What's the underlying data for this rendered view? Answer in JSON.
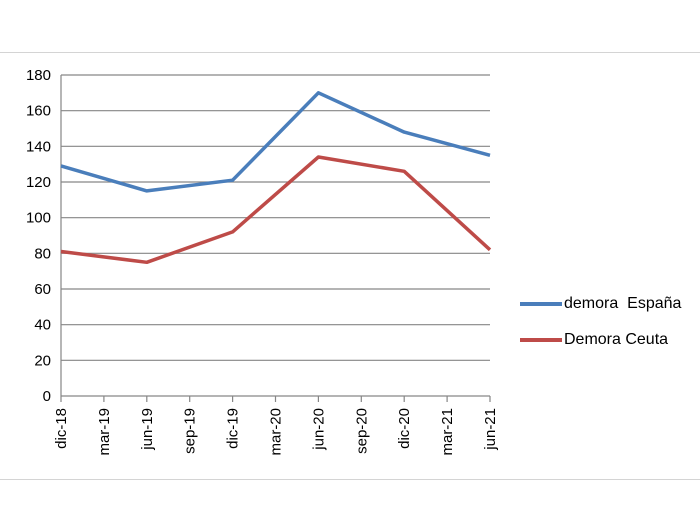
{
  "chart_data": {
    "type": "line",
    "title": "",
    "xlabel": "",
    "ylabel": "",
    "categories": [
      "dic-18",
      "mar-19",
      "jun-19",
      "sep-19",
      "dic-19",
      "mar-20",
      "jun-20",
      "sep-20",
      "dic-20",
      "mar-21",
      "jun-21"
    ],
    "ylim": [
      0,
      180
    ],
    "yticks": [
      "0",
      "20",
      "40",
      "60",
      "80",
      "100",
      "120",
      "140",
      "160",
      "180"
    ],
    "grid": "horizontal",
    "legend_position": "right",
    "series": [
      {
        "name": "demora  España",
        "color": "#4a7ebb",
        "values": [
          129,
          null,
          115,
          null,
          121,
          null,
          170,
          null,
          148,
          null,
          135
        ]
      },
      {
        "name": "Demora Ceuta",
        "color": "#be4b48",
        "values": [
          81,
          null,
          75,
          null,
          92,
          null,
          134,
          null,
          126,
          null,
          82
        ]
      }
    ]
  }
}
